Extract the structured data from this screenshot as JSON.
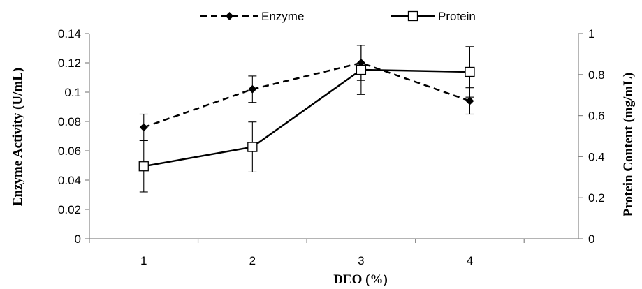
{
  "chart_data": {
    "type": "line",
    "xlabel": "DEO (%)",
    "ylabel": "Enzyme Activity (U/mL)",
    "y2label": "Protein Content (mg/mL)",
    "categories": [
      "1",
      "2",
      "3",
      "4"
    ],
    "ylim": [
      0,
      0.14
    ],
    "y2lim": [
      0,
      1
    ],
    "y_ticks": [
      "0",
      "0.02",
      "0.04",
      "0.06",
      "0.08",
      "0.1",
      "0.12",
      "0.14"
    ],
    "y2_ticks": [
      "0",
      "0.2",
      "0.4",
      "0.6",
      "0.8",
      "1"
    ],
    "grid": false,
    "legend_position": "top",
    "series": [
      {
        "name": "Enzyme",
        "axis": "left",
        "line_style": "dashed",
        "marker": "filled-diamond",
        "color": "#000000",
        "values": [
          0.076,
          0.102,
          0.12,
          0.094
        ],
        "error": [
          0.009,
          0.009,
          0.012,
          0.009
        ]
      },
      {
        "name": "Protein",
        "axis": "right",
        "line_style": "solid",
        "marker": "open-square",
        "color": "#000000",
        "values": [
          0.353,
          0.447,
          0.823,
          0.813
        ],
        "error": [
          0.125,
          0.122,
          0.12,
          0.123
        ]
      }
    ]
  }
}
